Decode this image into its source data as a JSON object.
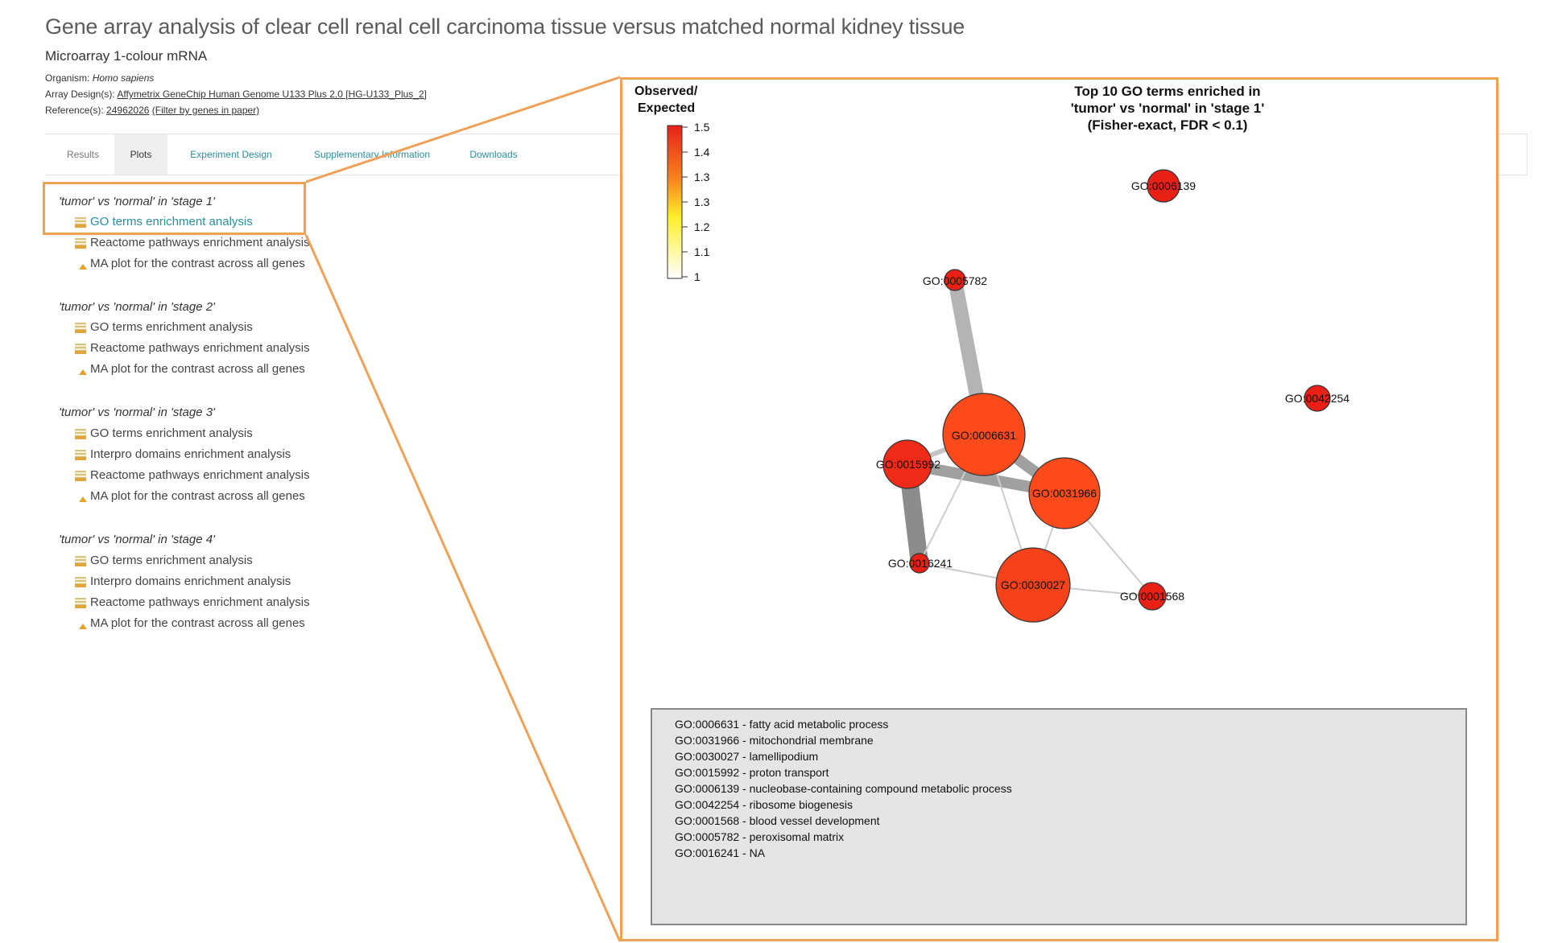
{
  "header": {
    "title": "Gene array analysis of clear cell renal cell carcinoma tissue versus matched normal kidney tissue",
    "subtitle": "Microarray 1-colour mRNA",
    "organism_label": "Organism:",
    "organism_value": "Homo sapiens",
    "array_label": "Array Design(s):",
    "array_value": "Affymetrix GeneChip Human Genome U133 Plus 2.0 [HG-U133_Plus_2]",
    "reference_label": "Reference(s):",
    "reference_id": "24962026",
    "reference_filter": "(Filter by genes in paper)"
  },
  "tabs": [
    {
      "label": "Results"
    },
    {
      "label": "Plots"
    },
    {
      "label": "Experiment Design"
    },
    {
      "label": "Supplementary Information"
    },
    {
      "label": "Downloads"
    }
  ],
  "groups": [
    {
      "title": "'tumor' vs 'normal' in 'stage 1'",
      "items": [
        {
          "label": "GO terms enrichment analysis",
          "icon": "bars-icon"
        },
        {
          "label": "Reactome pathways enrichment analysis",
          "icon": "bars-icon"
        },
        {
          "label": "MA plot for the contrast across all genes",
          "icon": "ma-plot-icon"
        }
      ]
    },
    {
      "title": "'tumor' vs 'normal' in 'stage 2'",
      "items": [
        {
          "label": "GO terms enrichment analysis",
          "icon": "bars-icon"
        },
        {
          "label": "Reactome pathways enrichment analysis",
          "icon": "bars-icon"
        },
        {
          "label": "MA plot for the contrast across all genes",
          "icon": "ma-plot-icon"
        }
      ]
    },
    {
      "title": "'tumor' vs 'normal' in 'stage 3'",
      "items": [
        {
          "label": "GO terms enrichment analysis",
          "icon": "bars-icon"
        },
        {
          "label": "Interpro domains enrichment analysis",
          "icon": "bars-icon"
        },
        {
          "label": "Reactome pathways enrichment analysis",
          "icon": "bars-icon"
        },
        {
          "label": "MA plot for the contrast across all genes",
          "icon": "ma-plot-icon"
        }
      ]
    },
    {
      "title": "'tumor' vs 'normal' in 'stage 4'",
      "items": [
        {
          "label": "GO terms enrichment analysis",
          "icon": "bars-icon"
        },
        {
          "label": "Interpro domains enrichment analysis",
          "icon": "bars-icon"
        },
        {
          "label": "Reactome pathways enrichment analysis",
          "icon": "bars-icon"
        },
        {
          "label": "MA plot for the contrast across all genes",
          "icon": "ma-plot-icon"
        }
      ]
    }
  ],
  "plot": {
    "title_lines": [
      "Top 10 GO terms enriched in",
      "'tumor' vs 'normal' in 'stage 1'",
      "(Fisher-exact, FDR < 0.1)"
    ],
    "legend_title_lines": [
      "Observed/",
      "Expected"
    ],
    "legend_ticks": [
      "1.5",
      "1.4",
      "1.3",
      "1.3",
      "1.2",
      "1.1",
      "1"
    ],
    "nodes": [
      {
        "id": "GO:0006631"
      },
      {
        "id": "GO:0031966"
      },
      {
        "id": "GO:0030027"
      },
      {
        "id": "GO:0015992"
      },
      {
        "id": "GO:0006139"
      },
      {
        "id": "GO:0042254"
      },
      {
        "id": "GO:0001568"
      },
      {
        "id": "GO:0005782"
      },
      {
        "id": "GO:0016241"
      }
    ],
    "definitions": [
      "GO:0006631 - fatty acid metabolic process",
      "GO:0031966 - mitochondrial membrane",
      "GO:0030027 - lamellipodium",
      "GO:0015992 - proton transport",
      "GO:0006139 - nucleobase-containing compound metabolic process",
      "GO:0042254 - ribosome biogenesis",
      "GO:0001568 - blood vessel development",
      "GO:0005782 - peroxisomal matrix",
      "GO:0016241 - NA"
    ],
    "colors": {
      "node_red": "#ef2a18",
      "node_orange": "#fc4a1a",
      "accent": "#f0a158"
    }
  }
}
